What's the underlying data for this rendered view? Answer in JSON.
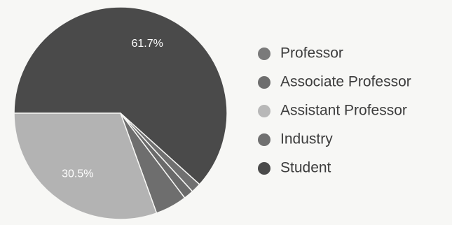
{
  "chart_data": {
    "type": "pie",
    "slices": [
      {
        "label": "Student",
        "percent": 61.7,
        "value_label": "61.7%",
        "color": "#4a4a4a"
      },
      {
        "label": "Professor",
        "percent": 1.5,
        "value_label": "",
        "color": "#707070"
      },
      {
        "label": "Associate Professor",
        "percent": 1.5,
        "value_label": "",
        "color": "#6a6a6a"
      },
      {
        "label": "Industry",
        "percent": 4.8,
        "value_label": "",
        "color": "#6e6e6e"
      },
      {
        "label": "Assistant Professor",
        "percent": 30.5,
        "value_label": "30.5%",
        "color": "#b3b3b3"
      }
    ],
    "legend": {
      "position": "right",
      "entries": [
        {
          "label": "Professor",
          "color": "#7a7a7a"
        },
        {
          "label": "Associate Professor",
          "color": "#6e6e6e"
        },
        {
          "label": "Assistant Professor",
          "color": "#b8b8b8"
        },
        {
          "label": "Industry",
          "color": "#707070"
        },
        {
          "label": "Student",
          "color": "#4a4a4a"
        }
      ]
    }
  }
}
